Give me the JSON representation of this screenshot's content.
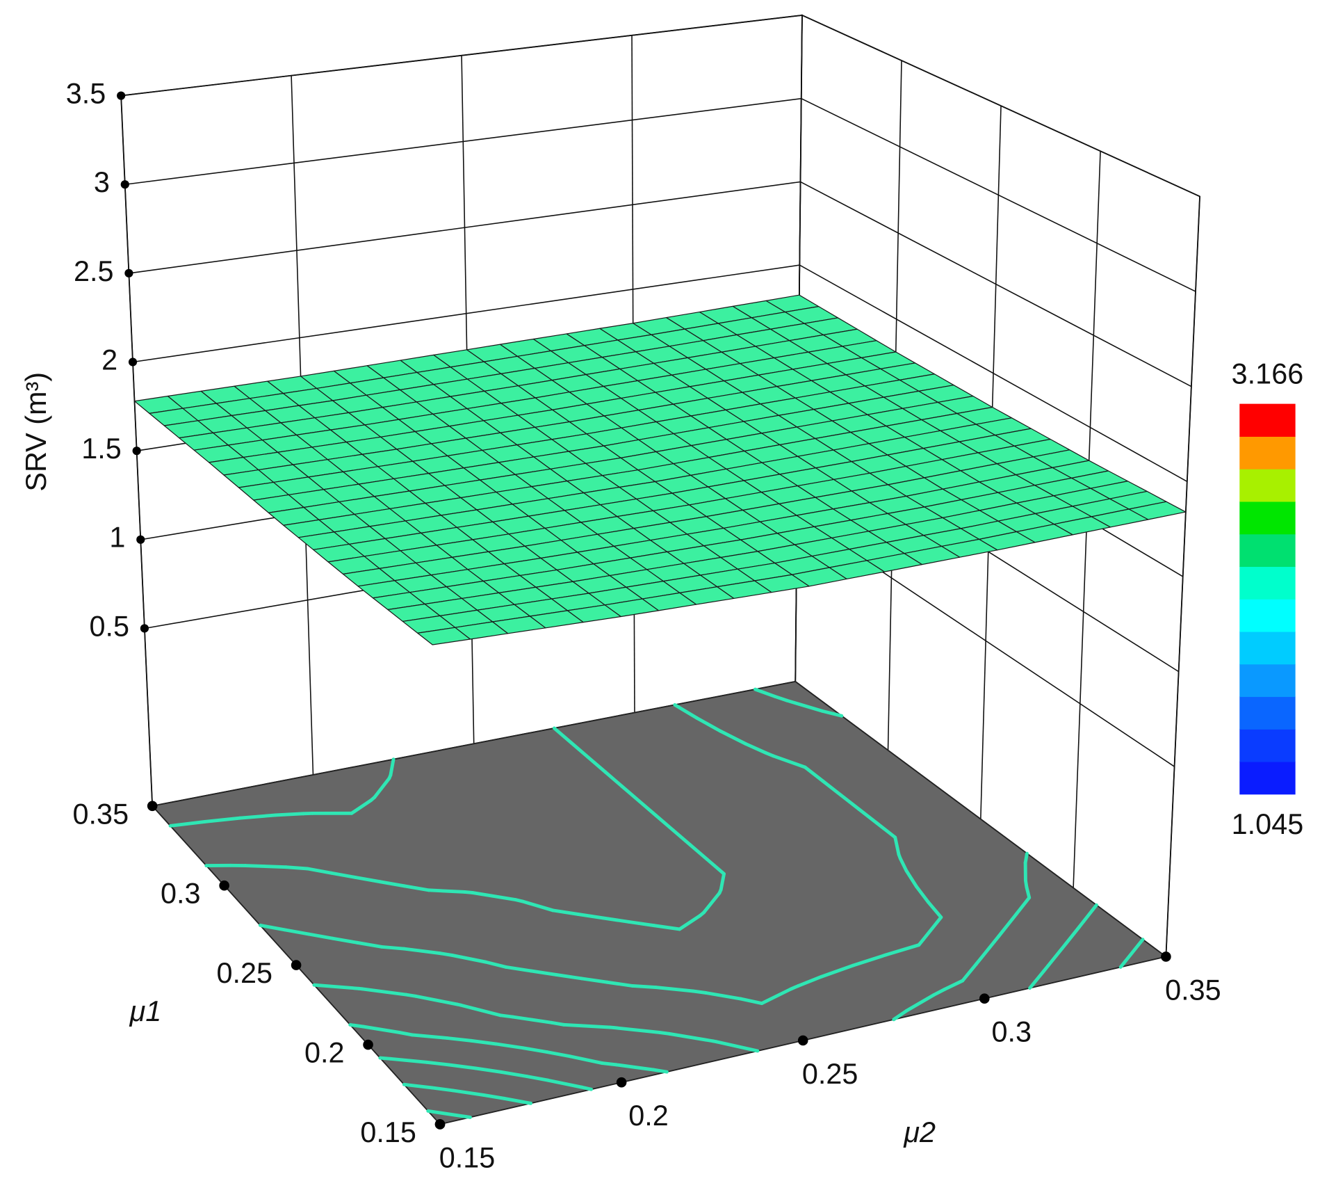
{
  "chart_data": {
    "type": "surface3d",
    "z_label": "SRV (m³)",
    "x_label": "μ2",
    "y_label": "μ1",
    "x": [
      0.15,
      0.2,
      0.25,
      0.3,
      0.35
    ],
    "y": [
      0.15,
      0.2,
      0.25,
      0.3,
      0.35
    ],
    "z": [
      [
        1.86,
        1.83,
        1.81,
        1.82,
        1.84
      ],
      [
        1.83,
        1.81,
        1.8,
        1.8,
        1.82
      ],
      [
        1.81,
        1.8,
        1.79,
        1.8,
        1.81
      ],
      [
        1.8,
        1.79,
        1.79,
        1.8,
        1.81
      ],
      [
        1.78,
        1.78,
        1.79,
        1.8,
        1.82
      ]
    ],
    "xlim": [
      0.15,
      0.35
    ],
    "ylim": [
      0.15,
      0.35
    ],
    "zlim": [
      -0.5,
      3.5
    ],
    "xticks": [
      0.15,
      0.2,
      0.25,
      0.3,
      0.35
    ],
    "yticks": [
      0.15,
      0.2,
      0.25,
      0.3,
      0.35
    ],
    "zticks": [
      0.5,
      1,
      1.5,
      2,
      2.5,
      3,
      3.5
    ],
    "colorbar": {
      "min": 1.045,
      "max": 3.166,
      "colors": [
        "#0a1cff",
        "#0a3cff",
        "#0a66ff",
        "#0a99ff",
        "#00ccff",
        "#00ffff",
        "#00ffcc",
        "#00e070",
        "#00e600",
        "#a8f000",
        "#ff9900",
        "#ff0000"
      ]
    },
    "surface_color": "#3cf0a0",
    "floor_color": "#666666",
    "contour_color": "#2fe6b4",
    "grid": true
  }
}
